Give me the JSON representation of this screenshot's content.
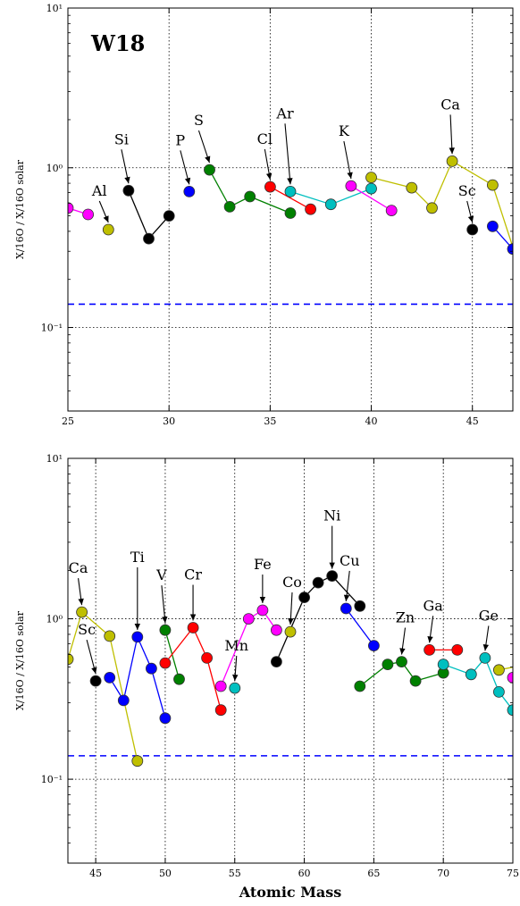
{
  "chart_data": [
    {
      "type": "scatter",
      "label": "W18",
      "xlabel": "",
      "ylabel": "X/16O / X/16O solar",
      "xlim": [
        25,
        47
      ],
      "ylim": [
        0.03,
        10
      ],
      "yscale": "log",
      "xticks": [
        "25",
        "30",
        "35",
        "40",
        "45"
      ],
      "yticks": [
        {
          "v": 0.1,
          "label": "10⁻¹"
        },
        {
          "v": 1,
          "label": "10⁰"
        },
        {
          "v": 10,
          "label": "10¹"
        }
      ],
      "grid": true,
      "reference_line": 0.14,
      "series": [
        {
          "color": "#ff00ff",
          "points": [
            [
              25,
              0.56
            ],
            [
              26,
              0.51
            ]
          ]
        },
        {
          "color": "#bfbf00",
          "points": [
            [
              27,
              0.41
            ]
          ]
        },
        {
          "color": "#000000",
          "points": [
            [
              28,
              0.72
            ],
            [
              29,
              0.36
            ],
            [
              30,
              0.5
            ]
          ]
        },
        {
          "color": "#0000ff",
          "points": [
            [
              31,
              0.71
            ]
          ]
        },
        {
          "color": "#008000",
          "points": [
            [
              32,
              0.97
            ],
            [
              33,
              0.57
            ],
            [
              34,
              0.66
            ],
            [
              36,
              0.52
            ]
          ]
        },
        {
          "color": "#ff0000",
          "points": [
            [
              35,
              0.76
            ],
            [
              37,
              0.55
            ]
          ]
        },
        {
          "color": "#00bfbf",
          "points": [
            [
              36,
              0.71
            ],
            [
              38,
              0.59
            ],
            [
              40,
              0.74
            ]
          ]
        },
        {
          "color": "#ff00ff",
          "points": [
            [
              39,
              0.77
            ],
            [
              41,
              0.54
            ]
          ]
        },
        {
          "color": "#bfbf00",
          "points": [
            [
              40,
              0.87
            ],
            [
              42,
              0.75
            ],
            [
              43,
              0.56
            ],
            [
              44,
              1.1
            ],
            [
              46,
              0.78
            ],
            [
              48,
              0.13
            ]
          ]
        },
        {
          "color": "#000000",
          "points": [
            [
              45,
              0.41
            ]
          ]
        },
        {
          "color": "#0000ff",
          "points": [
            [
              46,
              0.43
            ],
            [
              47,
              0.31
            ]
          ]
        }
      ],
      "annotations": [
        {
          "text": "Al",
          "x": 27,
          "y": 0.41
        },
        {
          "text": "Si",
          "x": 28,
          "y": 0.72
        },
        {
          "text": "P",
          "x": 31,
          "y": 0.71
        },
        {
          "text": "S",
          "x": 32,
          "y": 0.97
        },
        {
          "text": "Cl",
          "x": 35,
          "y": 0.76
        },
        {
          "text": "Ar",
          "x": 36,
          "y": 0.71
        },
        {
          "text": "K",
          "x": 39,
          "y": 0.77
        },
        {
          "text": "Ca",
          "x": 44,
          "y": 1.1
        },
        {
          "text": "Sc",
          "x": 45,
          "y": 0.41
        }
      ]
    },
    {
      "type": "scatter",
      "label": "",
      "xlabel": "Atomic Mass",
      "ylabel": "X/16O / X/16O solar",
      "xlim": [
        43,
        75
      ],
      "ylim": [
        0.03,
        10
      ],
      "yscale": "log",
      "xticks": [
        "45",
        "50",
        "55",
        "60",
        "65",
        "70",
        "75"
      ],
      "yticks": [
        {
          "v": 0.1,
          "label": "10⁻¹"
        },
        {
          "v": 1,
          "label": "10⁰"
        },
        {
          "v": 10,
          "label": "10¹"
        }
      ],
      "grid": true,
      "reference_line": 0.14,
      "series": [
        {
          "color": "#bfbf00",
          "points": [
            [
              43,
              0.56
            ],
            [
              44,
              1.1
            ],
            [
              46,
              0.78
            ],
            [
              48,
              0.13
            ]
          ]
        },
        {
          "color": "#000000",
          "points": [
            [
              45,
              0.41
            ]
          ]
        },
        {
          "color": "#0000ff",
          "points": [
            [
              46,
              0.43
            ],
            [
              47,
              0.31
            ],
            [
              48,
              0.77
            ],
            [
              49,
              0.49
            ],
            [
              50,
              0.24
            ]
          ]
        },
        {
          "color": "#008000",
          "points": [
            [
              50,
              0.85
            ],
            [
              51,
              0.42
            ]
          ]
        },
        {
          "color": "#ff0000",
          "points": [
            [
              50,
              0.53
            ],
            [
              52,
              0.88
            ],
            [
              53,
              0.57
            ],
            [
              54,
              0.27
            ]
          ]
        },
        {
          "color": "#ff00ff",
          "points": [
            [
              54,
              0.38
            ],
            [
              56,
              1.0
            ],
            [
              57,
              1.13
            ],
            [
              58,
              0.85
            ]
          ]
        },
        {
          "color": "#00bfbf",
          "points": [
            [
              55,
              0.37
            ]
          ]
        },
        {
          "color": "#000000",
          "points": [
            [
              58,
              0.54
            ],
            [
              60,
              1.36
            ],
            [
              61,
              1.68
            ],
            [
              62,
              1.85
            ],
            [
              64,
              1.2
            ]
          ]
        },
        {
          "color": "#bfbf00",
          "points": [
            [
              59,
              0.83
            ]
          ]
        },
        {
          "color": "#0000ff",
          "points": [
            [
              63,
              1.16
            ],
            [
              65,
              0.68
            ]
          ]
        },
        {
          "color": "#008000",
          "points": [
            [
              64,
              0.38
            ],
            [
              66,
              0.52
            ],
            [
              67,
              0.54
            ],
            [
              68,
              0.41
            ],
            [
              70,
              0.46
            ]
          ]
        },
        {
          "color": "#ff0000",
          "points": [
            [
              69,
              0.64
            ],
            [
              71,
              0.64
            ]
          ]
        },
        {
          "color": "#00bfbf",
          "points": [
            [
              70,
              0.52
            ],
            [
              72,
              0.45
            ],
            [
              73,
              0.57
            ],
            [
              74,
              0.35
            ],
            [
              75,
              0.27
            ]
          ]
        },
        {
          "color": "#bfbf00",
          "points": [
            [
              74,
              0.48
            ],
            [
              76,
              0.52
            ]
          ]
        },
        {
          "color": "#ff00ff",
          "points": [
            [
              75,
              0.43
            ]
          ]
        }
      ],
      "annotations": [
        {
          "text": "Ca",
          "x": 44,
          "y": 1.1
        },
        {
          "text": "Sc",
          "x": 45,
          "y": 0.41
        },
        {
          "text": "Ti",
          "x": 48,
          "y": 0.77
        },
        {
          "text": "V",
          "x": 50,
          "y": 0.85
        },
        {
          "text": "Cr",
          "x": 52,
          "y": 0.88
        },
        {
          "text": "Mn",
          "x": 55,
          "y": 0.37
        },
        {
          "text": "Fe",
          "x": 57,
          "y": 1.13
        },
        {
          "text": "Co",
          "x": 59,
          "y": 0.83
        },
        {
          "text": "Ni",
          "x": 62,
          "y": 1.85
        },
        {
          "text": "Cu",
          "x": 63,
          "y": 1.16
        },
        {
          "text": "Zn",
          "x": 67,
          "y": 0.54
        },
        {
          "text": "Ga",
          "x": 69,
          "y": 0.64
        },
        {
          "text": "Ge",
          "x": 73,
          "y": 0.57
        }
      ]
    }
  ]
}
